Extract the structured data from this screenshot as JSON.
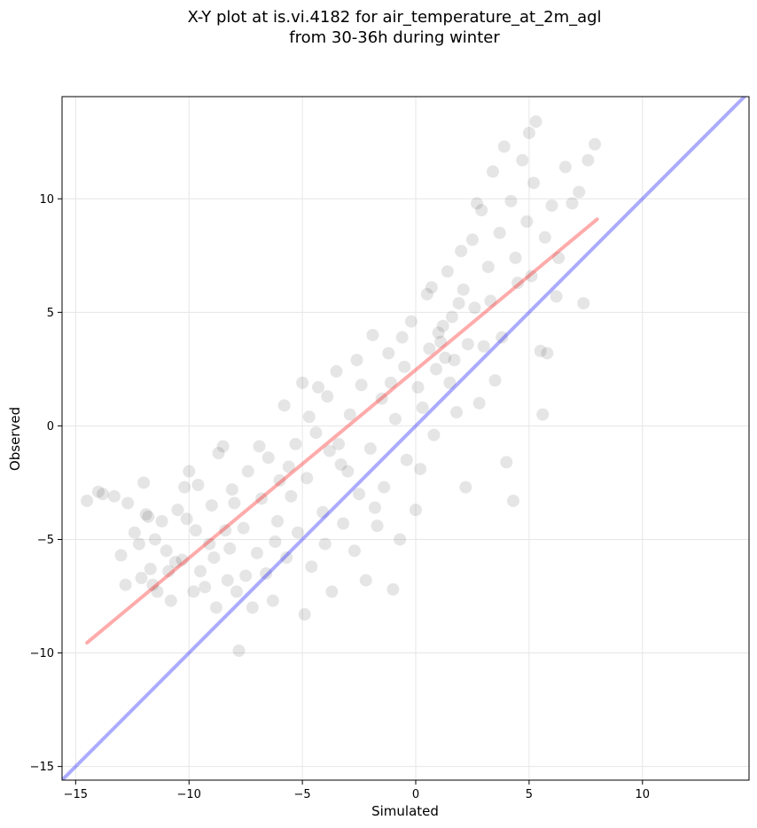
{
  "chart_data": {
    "type": "scatter",
    "title": [
      "X-Y plot at is.vi.4182 for air_temperature_at_2m_agl",
      "from 30-36h during winter"
    ],
    "xlabel": "Simulated",
    "ylabel": "Observed",
    "xlim": [
      -15.6,
      14.7
    ],
    "ylim": [
      -15.6,
      14.5
    ],
    "xticks": [
      -15,
      -10,
      -5,
      0,
      5,
      10
    ],
    "yticks": [
      -15,
      -10,
      -5,
      0,
      5,
      10
    ],
    "tick_labels": [
      "−15",
      "−10",
      "−5",
      "0",
      "5",
      "10"
    ],
    "grid": true,
    "point_color": "#000000",
    "point_alpha": 0.1,
    "series": [
      {
        "values_xy": [
          [
            -14.5,
            -3.3
          ],
          [
            -13.8,
            -3.0
          ],
          [
            -13.3,
            -3.1
          ],
          [
            -13.0,
            -5.7
          ],
          [
            -12.8,
            -7.0
          ],
          [
            -12.7,
            -3.4
          ],
          [
            -12.4,
            -4.7
          ],
          [
            -12.2,
            -5.2
          ],
          [
            -12.0,
            -2.5
          ],
          [
            -11.9,
            -3.9
          ],
          [
            -11.7,
            -6.3
          ],
          [
            -11.6,
            -7.0
          ],
          [
            -11.5,
            -5.0
          ],
          [
            -11.4,
            -7.3
          ],
          [
            -11.2,
            -4.2
          ],
          [
            -11.0,
            -5.5
          ],
          [
            -10.8,
            -7.7
          ],
          [
            -10.6,
            -6.0
          ],
          [
            -10.5,
            -3.7
          ],
          [
            -10.3,
            -5.9
          ],
          [
            -10.2,
            -2.7
          ],
          [
            -10.0,
            -2.0
          ],
          [
            -9.8,
            -7.3
          ],
          [
            -9.7,
            -4.6
          ],
          [
            -9.5,
            -6.4
          ],
          [
            -9.3,
            -7.1
          ],
          [
            -9.1,
            -5.2
          ],
          [
            -9.0,
            -3.5
          ],
          [
            -8.8,
            -8.0
          ],
          [
            -8.7,
            -1.2
          ],
          [
            -8.5,
            -0.9
          ],
          [
            -8.4,
            -4.6
          ],
          [
            -8.3,
            -6.8
          ],
          [
            -8.2,
            -5.4
          ],
          [
            -8.0,
            -3.4
          ],
          [
            -7.9,
            -7.3
          ],
          [
            -7.8,
            -9.9
          ],
          [
            -7.6,
            -4.5
          ],
          [
            -7.4,
            -2.0
          ],
          [
            -7.2,
            -8.0
          ],
          [
            -7.0,
            -5.6
          ],
          [
            -6.8,
            -3.2
          ],
          [
            -6.6,
            -6.5
          ],
          [
            -6.5,
            -1.4
          ],
          [
            -6.3,
            -7.7
          ],
          [
            -6.1,
            -4.2
          ],
          [
            -6.0,
            -2.4
          ],
          [
            -5.8,
            0.9
          ],
          [
            -5.7,
            -5.8
          ],
          [
            -5.5,
            -3.1
          ],
          [
            -5.3,
            -0.8
          ],
          [
            -5.2,
            -4.7
          ],
          [
            -5.0,
            1.9
          ],
          [
            -4.9,
            -8.3
          ],
          [
            -4.8,
            -2.3
          ],
          [
            -4.6,
            -6.2
          ],
          [
            -4.4,
            -0.3
          ],
          [
            -4.3,
            1.7
          ],
          [
            -4.1,
            -3.8
          ],
          [
            -4.0,
            -5.2
          ],
          [
            -3.8,
            -1.1
          ],
          [
            -3.7,
            -7.3
          ],
          [
            -3.5,
            2.4
          ],
          [
            -3.4,
            -0.8
          ],
          [
            -3.2,
            -4.3
          ],
          [
            -3.0,
            -2.0
          ],
          [
            -2.9,
            0.5
          ],
          [
            -2.7,
            -5.5
          ],
          [
            -2.5,
            -3.0
          ],
          [
            -2.4,
            1.8
          ],
          [
            -2.2,
            -6.8
          ],
          [
            -2.0,
            -1.0
          ],
          [
            -1.9,
            4.0
          ],
          [
            -1.7,
            -4.4
          ],
          [
            -1.5,
            1.2
          ],
          [
            -1.4,
            -2.7
          ],
          [
            -1.2,
            3.2
          ],
          [
            -1.0,
            -7.2
          ],
          [
            -0.9,
            0.3
          ],
          [
            -0.7,
            -5.0
          ],
          [
            -0.5,
            2.6
          ],
          [
            -0.4,
            -1.5
          ],
          [
            -0.2,
            4.6
          ],
          [
            0.0,
            -3.7
          ],
          [
            0.1,
            1.7
          ],
          [
            0.3,
            0.8
          ],
          [
            0.5,
            5.8
          ],
          [
            0.6,
            3.4
          ],
          [
            0.8,
            -0.4
          ],
          [
            0.9,
            2.5
          ],
          [
            1.0,
            4.1
          ],
          [
            1.1,
            3.7
          ],
          [
            1.2,
            4.4
          ],
          [
            1.3,
            3.0
          ],
          [
            1.4,
            6.8
          ],
          [
            1.5,
            1.9
          ],
          [
            1.6,
            4.8
          ],
          [
            1.8,
            0.6
          ],
          [
            1.9,
            5.4
          ],
          [
            2.0,
            7.7
          ],
          [
            2.2,
            -2.7
          ],
          [
            2.3,
            3.6
          ],
          [
            2.5,
            8.2
          ],
          [
            2.6,
            5.2
          ],
          [
            2.8,
            1.0
          ],
          [
            2.9,
            9.5
          ],
          [
            3.0,
            3.5
          ],
          [
            3.2,
            7.0
          ],
          [
            3.4,
            11.2
          ],
          [
            3.5,
            2.0
          ],
          [
            3.7,
            8.5
          ],
          [
            3.9,
            12.3
          ],
          [
            4.0,
            -1.6
          ],
          [
            4.2,
            9.9
          ],
          [
            4.3,
            -3.3
          ],
          [
            4.5,
            6.3
          ],
          [
            4.7,
            11.7
          ],
          [
            4.9,
            9.0
          ],
          [
            5.0,
            12.9
          ],
          [
            5.2,
            10.7
          ],
          [
            5.3,
            13.4
          ],
          [
            5.5,
            3.3
          ],
          [
            5.6,
            0.5
          ],
          [
            5.8,
            3.2
          ],
          [
            6.0,
            9.7
          ],
          [
            6.2,
            5.7
          ],
          [
            6.6,
            11.4
          ],
          [
            6.9,
            9.8
          ],
          [
            7.2,
            10.3
          ],
          [
            7.4,
            5.4
          ],
          [
            7.6,
            11.7
          ],
          [
            7.9,
            12.4
          ],
          [
            -14.0,
            -2.9
          ],
          [
            -12.1,
            -6.7
          ],
          [
            -11.8,
            -4.0
          ],
          [
            -10.9,
            -6.4
          ],
          [
            -10.1,
            -4.1
          ],
          [
            -9.6,
            -2.6
          ],
          [
            -8.9,
            -5.8
          ],
          [
            -8.1,
            -2.8
          ],
          [
            -7.5,
            -6.6
          ],
          [
            -6.9,
            -0.9
          ],
          [
            -6.2,
            -5.1
          ],
          [
            -5.6,
            -1.8
          ],
          [
            -4.7,
            0.4
          ],
          [
            -3.9,
            1.3
          ],
          [
            -3.3,
            -1.7
          ],
          [
            -2.6,
            2.9
          ],
          [
            -1.8,
            -3.6
          ],
          [
            -1.1,
            1.9
          ],
          [
            -0.6,
            3.9
          ],
          [
            0.2,
            -1.9
          ],
          [
            0.7,
            6.1
          ],
          [
            1.7,
            2.9
          ],
          [
            2.1,
            6.0
          ],
          [
            2.7,
            9.8
          ],
          [
            3.3,
            5.5
          ],
          [
            3.8,
            3.9
          ],
          [
            4.4,
            7.4
          ],
          [
            5.1,
            6.6
          ],
          [
            5.7,
            8.3
          ],
          [
            6.3,
            7.4
          ]
        ]
      }
    ],
    "reference_lines": [
      {
        "name": "",
        "color": "#0000ff",
        "alpha": 0.33,
        "points_xy": [
          [
            -16.0,
            -16.0
          ],
          [
            15.0,
            15.0
          ]
        ]
      },
      {
        "name": "",
        "color": "#ff0000",
        "alpha": 0.33,
        "points_xy": [
          [
            -14.5,
            -9.55
          ],
          [
            8.0,
            9.1
          ]
        ]
      }
    ]
  }
}
